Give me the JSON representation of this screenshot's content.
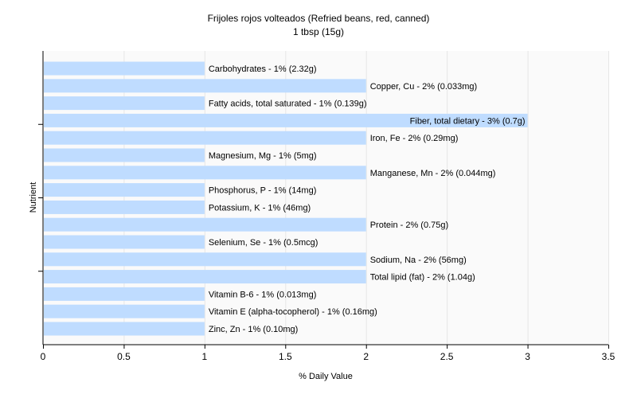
{
  "chart_data": {
    "type": "bar",
    "orientation": "horizontal",
    "title": "Frijoles rojos volteados (Refried beans, red, canned)",
    "subtitle": "1 tbsp (15g)",
    "xlabel": "% Daily Value",
    "ylabel": "Nutrient",
    "xlim": [
      0,
      3.5
    ],
    "xticks": [
      "0",
      "0.5",
      "1",
      "1.5",
      "2",
      "2.5",
      "3",
      "3.5"
    ],
    "grid": true,
    "legend": "none",
    "bar_color": "#bfdcff",
    "categories": [
      "Carbohydrates",
      "Copper, Cu",
      "Fatty acids, total saturated",
      "Fiber, total dietary",
      "Iron, Fe",
      "Magnesium, Mg",
      "Manganese, Mn",
      "Phosphorus, P",
      "Potassium, K",
      "Protein",
      "Selenium, Se",
      "Sodium, Na",
      "Total lipid (fat)",
      "Vitamin B-6",
      "Vitamin E (alpha-tocopherol)",
      "Zinc, Zn"
    ],
    "values": [
      1,
      2,
      1,
      3,
      2,
      1,
      2,
      1,
      1,
      2,
      1,
      2,
      2,
      1,
      1,
      1
    ],
    "labels": [
      "Carbohydrates - 1% (2.32g)",
      "Copper, Cu - 2% (0.033mg)",
      "Fatty acids, total saturated - 1% (0.139g)",
      "Fiber, total dietary - 3% (0.7g)",
      "Iron, Fe - 2% (0.29mg)",
      "Magnesium, Mg - 1% (5mg)",
      "Manganese, Mn - 2% (0.044mg)",
      "Phosphorus, P - 1% (14mg)",
      "Potassium, K - 1% (46mg)",
      "Protein - 2% (0.75g)",
      "Selenium, Se - 1% (0.5mcg)",
      "Sodium, Na - 2% (56mg)",
      "Total lipid (fat) - 2% (1.04g)",
      "Vitamin B-6 - 1% (0.013mg)",
      "Vitamin E (alpha-tocopherol) - 1% (0.16mg)",
      "Zinc, Zn - 1% (0.10mg)"
    ]
  }
}
